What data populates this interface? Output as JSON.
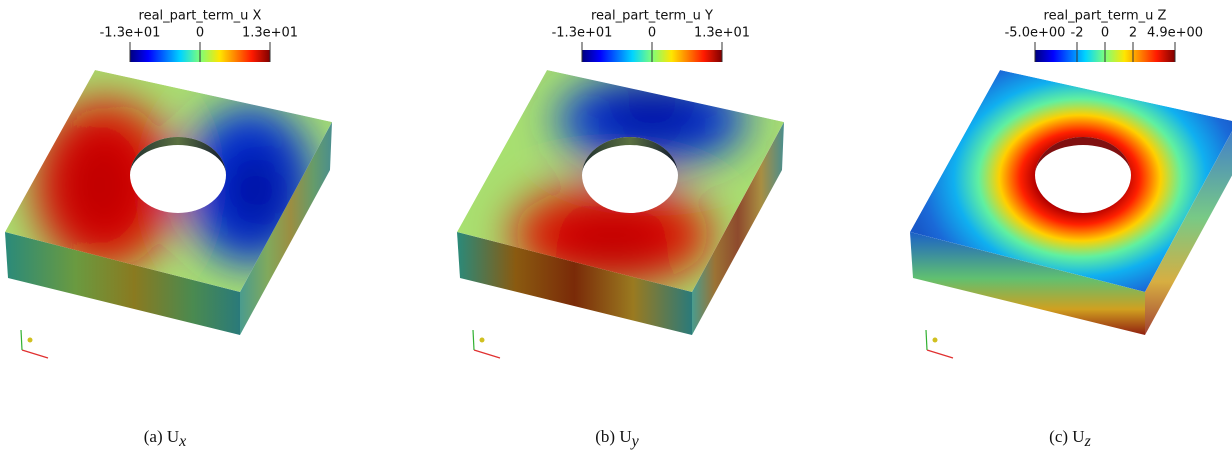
{
  "panels": [
    {
      "colorbar": {
        "title": "real_part_term_u X",
        "ticks": [
          "-1.3e+01",
          "0",
          "1.3e+01"
        ]
      },
      "caption": {
        "label": "(a)",
        "symbol": "U",
        "subscript": "x"
      }
    },
    {
      "colorbar": {
        "title": "real_part_term_u Y",
        "ticks": [
          "-1.3e+01",
          "0",
          "1.3e+01"
        ]
      },
      "caption": {
        "label": "(b)",
        "symbol": "U",
        "subscript": "y"
      }
    },
    {
      "colorbar": {
        "title": "real_part_term_u Z",
        "ticks": [
          "-5.0e+00",
          "-2",
          "0",
          "2",
          "4.9e+00"
        ]
      },
      "caption": {
        "label": "(c)",
        "symbol": "U",
        "subscript": "z"
      }
    }
  ]
}
